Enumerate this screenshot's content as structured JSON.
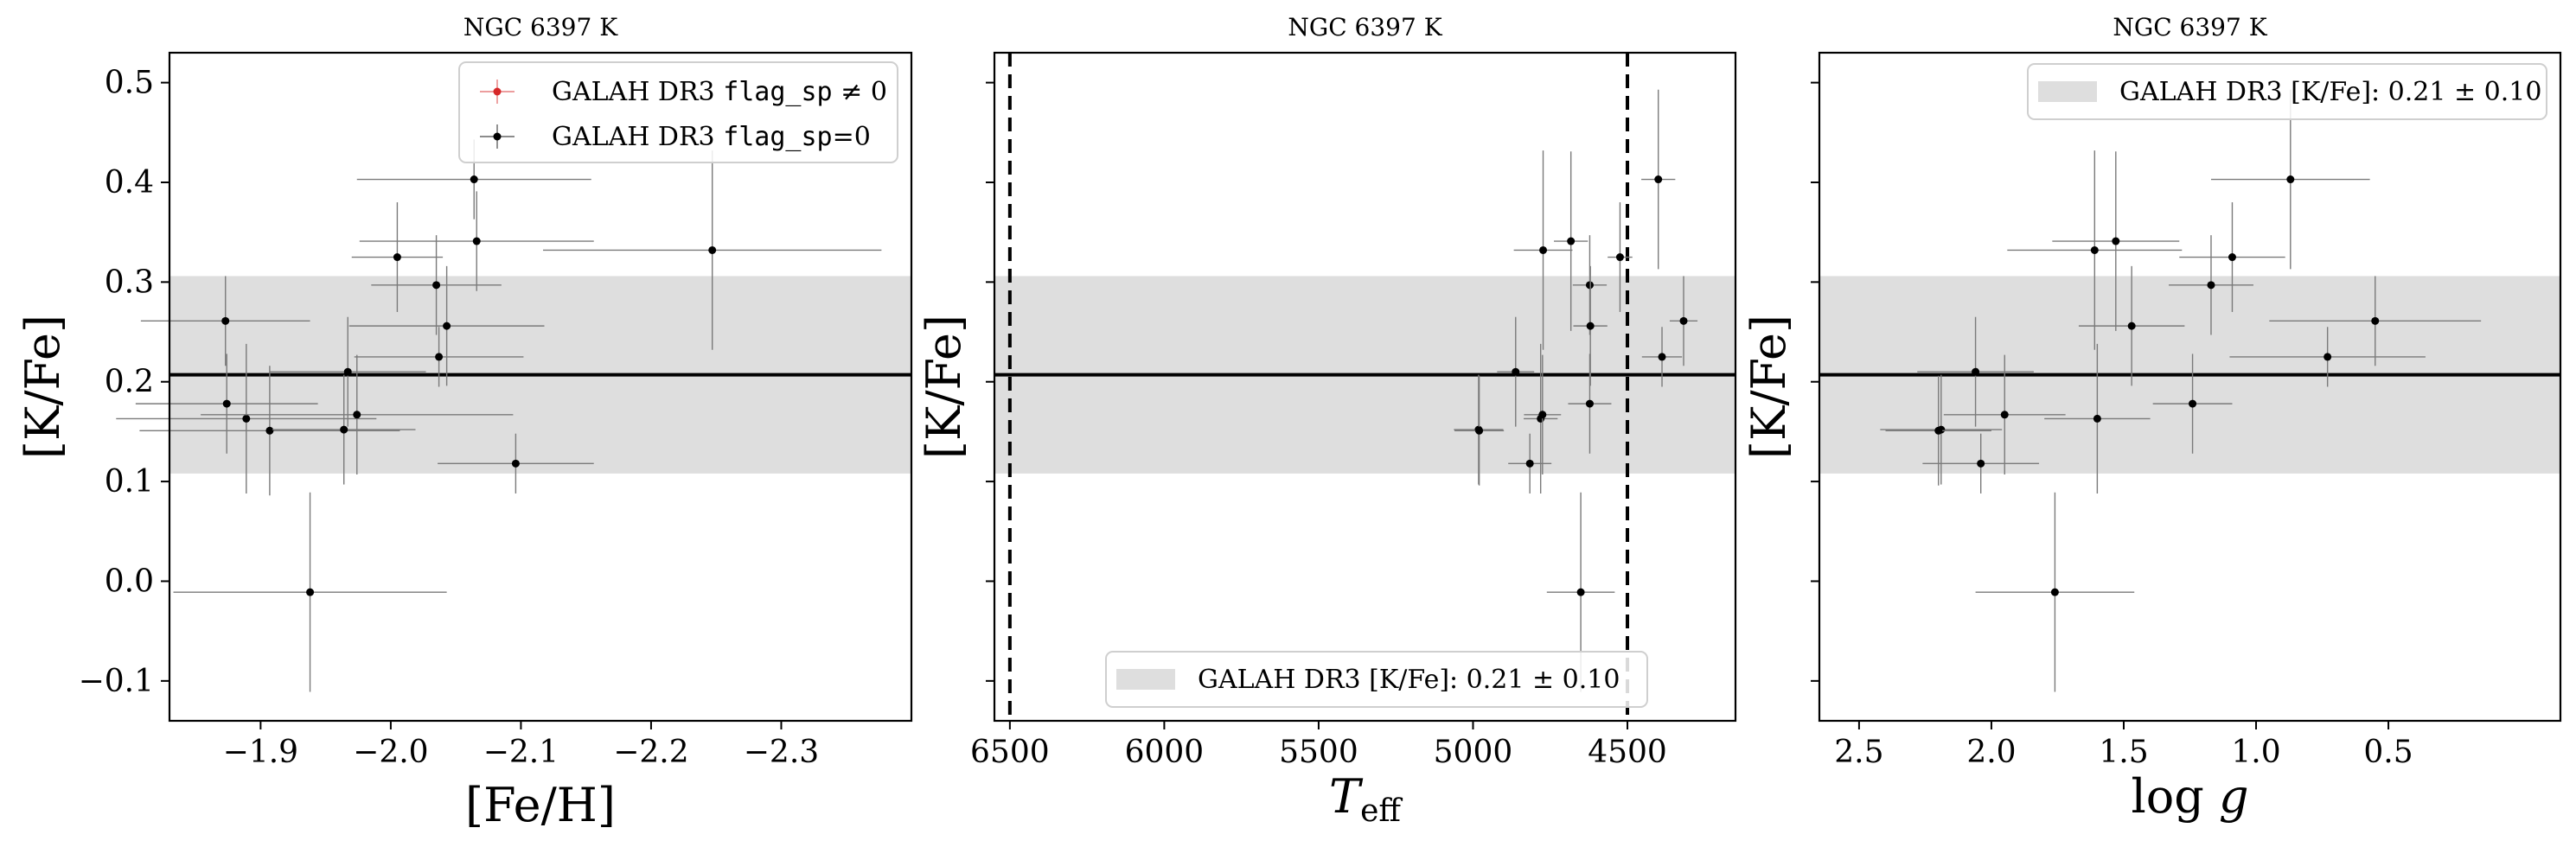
{
  "colors": {
    "band": "#dedede",
    "points": "#000000",
    "errorbars": "#7a7a7a",
    "flagged": "#d62728",
    "frame": "#000000"
  },
  "chart_data": [
    {
      "type": "scatter",
      "title": "NGC 6397 K",
      "xlabel": "[Fe/H]",
      "ylabel": "[K/Fe]",
      "xlim": [
        -1.83,
        -2.4
      ],
      "ylim": [
        -0.14,
        0.53
      ],
      "xticks": [
        -1.9,
        -2.0,
        -2.1,
        -2.2,
        -2.3
      ],
      "xtick_labels": [
        "−1.9",
        "−2.0",
        "−2.1",
        "−2.2",
        "−2.3"
      ],
      "yticks": [
        -0.1,
        0.0,
        0.1,
        0.2,
        0.3,
        0.4,
        0.5
      ],
      "ytick_labels": [
        "−0.1",
        "0.0",
        "0.1",
        "0.2",
        "0.3",
        "0.4",
        "0.5"
      ],
      "band": {
        "center": 0.207,
        "low": 0.108,
        "high": 0.306
      },
      "legend": {
        "placement": "top-right",
        "entries": [
          {
            "label_pre": "GALAH DR3 ",
            "label_code": "flag_sp",
            "label_post": " ≠ 0",
            "color": "#d62728"
          },
          {
            "label_pre": "GALAH DR3 ",
            "label_code": "flag_sp",
            "label_post": "=0",
            "color": "#000000"
          }
        ]
      },
      "series": [
        {
          "name": "GALAH DR3 flag_sp=0",
          "points": [
            {
              "x": -1.873,
              "y": 0.261,
              "xerr": 0.065,
              "yerr": 0.045
            },
            {
              "x": -1.874,
              "y": 0.178,
              "xerr": 0.07,
              "yerr": 0.05
            },
            {
              "x": -1.889,
              "y": 0.163,
              "xerr": 0.1,
              "yerr": 0.075
            },
            {
              "x": -1.907,
              "y": 0.151,
              "xerr": 0.1,
              "yerr": 0.065
            },
            {
              "x": -1.964,
              "y": 0.152,
              "xerr": 0.055,
              "yerr": 0.055
            },
            {
              "x": -1.967,
              "y": 0.21,
              "xerr": 0.06,
              "yerr": 0.055
            },
            {
              "x": -1.974,
              "y": 0.167,
              "xerr": 0.12,
              "yerr": 0.06
            },
            {
              "x": -2.005,
              "y": 0.325,
              "xerr": 0.035,
              "yerr": 0.055
            },
            {
              "x": -2.035,
              "y": 0.297,
              "xerr": 0.05,
              "yerr": 0.05
            },
            {
              "x": -2.037,
              "y": 0.225,
              "xerr": 0.065,
              "yerr": 0.03
            },
            {
              "x": -2.043,
              "y": 0.256,
              "xerr": 0.075,
              "yerr": 0.06
            },
            {
              "x": -2.064,
              "y": 0.403,
              "xerr": 0.09,
              "yerr": 0.04
            },
            {
              "x": -2.066,
              "y": 0.341,
              "xerr": 0.09,
              "yerr": 0.05
            },
            {
              "x": -1.938,
              "y": -0.011,
              "xerr": 0.105,
              "yerr": 0.1
            },
            {
              "x": -2.096,
              "y": 0.118,
              "xerr": 0.06,
              "yerr": 0.03
            },
            {
              "x": -2.247,
              "y": 0.332,
              "xerr": 0.13,
              "yerr": 0.1
            }
          ]
        }
      ]
    },
    {
      "type": "scatter",
      "title": "NGC 6397 K",
      "xlabel": "T_eff",
      "xlabel_main": "T",
      "xlabel_sub": "eff",
      "ylabel": "[K/Fe]",
      "xlim": [
        6550,
        4150
      ],
      "ylim": [
        -0.14,
        0.53
      ],
      "xticks": [
        6500,
        6000,
        5500,
        5000,
        4500
      ],
      "xtick_labels": [
        "6500",
        "6000",
        "5500",
        "5000",
        "4500"
      ],
      "yticks": [
        -0.1,
        0.0,
        0.1,
        0.2,
        0.3,
        0.4,
        0.5
      ],
      "vlines": [
        6500,
        4500
      ],
      "band": {
        "center": 0.207,
        "low": 0.108,
        "high": 0.306
      },
      "legend": {
        "placement": "bottom-center",
        "entries": [
          {
            "label_pre": "GALAH DR3 [K/Fe]: 0.21 ± 0.10",
            "color": "#dedede"
          }
        ]
      },
      "series": [
        {
          "name": "GALAH DR3 flag_sp=0",
          "points": [
            {
              "x": 4982,
              "y": 0.152,
              "yerr": 0.055,
              "xerr": 80
            },
            {
              "x": 4980,
              "y": 0.151,
              "yerr": 0.055,
              "xerr": 80
            },
            {
              "x": 4862,
              "y": 0.21,
              "yerr": 0.055,
              "xerr": 60
            },
            {
              "x": 4816,
              "y": 0.118,
              "yerr": 0.03,
              "xerr": 70
            },
            {
              "x": 4781,
              "y": 0.163,
              "yerr": 0.075,
              "xerr": 55
            },
            {
              "x": 4775,
              "y": 0.167,
              "yerr": 0.06,
              "xerr": 60
            },
            {
              "x": 4773,
              "y": 0.332,
              "yerr": 0.1,
              "xerr": 95
            },
            {
              "x": 4683,
              "y": 0.341,
              "yerr": 0.09,
              "xerr": 55
            },
            {
              "x": 4651,
              "y": -0.011,
              "yerr": 0.1,
              "xerr": 110
            },
            {
              "x": 4622,
              "y": 0.297,
              "yerr": 0.05,
              "xerr": 55
            },
            {
              "x": 4620,
              "y": 0.256,
              "yerr": 0.06,
              "xerr": 55
            },
            {
              "x": 4622,
              "y": 0.178,
              "yerr": 0.05,
              "xerr": 70
            },
            {
              "x": 4524,
              "y": 0.325,
              "yerr": 0.055,
              "xerr": 40
            },
            {
              "x": 4400,
              "y": 0.403,
              "yerr": 0.09,
              "xerr": 55
            },
            {
              "x": 4388,
              "y": 0.225,
              "yerr": 0.03,
              "xerr": 65
            },
            {
              "x": 4318,
              "y": 0.261,
              "yerr": 0.045,
              "xerr": 45
            }
          ]
        }
      ]
    },
    {
      "type": "scatter",
      "title": "NGC 6397 K",
      "xlabel": "log g",
      "xlabel_main": "log ",
      "xlabel_italic": "g",
      "ylabel": "[K/Fe]",
      "xlim": [
        2.65,
        -0.15
      ],
      "ylim": [
        -0.14,
        0.53
      ],
      "xticks": [
        2.5,
        2.0,
        1.5,
        1.0,
        0.5
      ],
      "xtick_labels": [
        "2.5",
        "2.0",
        "1.5",
        "1.0",
        "0.5"
      ],
      "yticks": [
        -0.1,
        0.0,
        0.1,
        0.2,
        0.3,
        0.4,
        0.5
      ],
      "band": {
        "center": 0.207,
        "low": 0.108,
        "high": 0.306
      },
      "legend": {
        "placement": "top-right",
        "entries": [
          {
            "label_pre": "GALAH DR3 [K/Fe]: 0.21 ± 0.10",
            "color": "#dedede"
          }
        ]
      },
      "series": [
        {
          "name": "GALAH DR3 flag_sp=0",
          "points": [
            {
              "x": 2.19,
              "y": 0.152,
              "xerr": 0.23,
              "yerr": 0.055
            },
            {
              "x": 2.2,
              "y": 0.151,
              "xerr": 0.2,
              "yerr": 0.055
            },
            {
              "x": 2.06,
              "y": 0.21,
              "xerr": 0.22,
              "yerr": 0.055
            },
            {
              "x": 2.04,
              "y": 0.118,
              "xerr": 0.22,
              "yerr": 0.03
            },
            {
              "x": 1.95,
              "y": 0.167,
              "xerr": 0.23,
              "yerr": 0.06
            },
            {
              "x": 1.76,
              "y": -0.011,
              "xerr": 0.3,
              "yerr": 0.1
            },
            {
              "x": 1.61,
              "y": 0.332,
              "xerr": 0.33,
              "yerr": 0.1
            },
            {
              "x": 1.6,
              "y": 0.163,
              "xerr": 0.2,
              "yerr": 0.075
            },
            {
              "x": 1.53,
              "y": 0.341,
              "xerr": 0.24,
              "yerr": 0.09
            },
            {
              "x": 1.47,
              "y": 0.256,
              "xerr": 0.2,
              "yerr": 0.06
            },
            {
              "x": 1.24,
              "y": 0.178,
              "xerr": 0.15,
              "yerr": 0.05
            },
            {
              "x": 1.17,
              "y": 0.297,
              "xerr": 0.16,
              "yerr": 0.05
            },
            {
              "x": 1.09,
              "y": 0.325,
              "xerr": 0.2,
              "yerr": 0.055
            },
            {
              "x": 0.87,
              "y": 0.403,
              "xerr": 0.3,
              "yerr": 0.09
            },
            {
              "x": 0.55,
              "y": 0.261,
              "xerr": 0.4,
              "yerr": 0.045
            },
            {
              "x": 0.73,
              "y": 0.225,
              "xerr": 0.37,
              "yerr": 0.03
            }
          ]
        }
      ]
    }
  ]
}
